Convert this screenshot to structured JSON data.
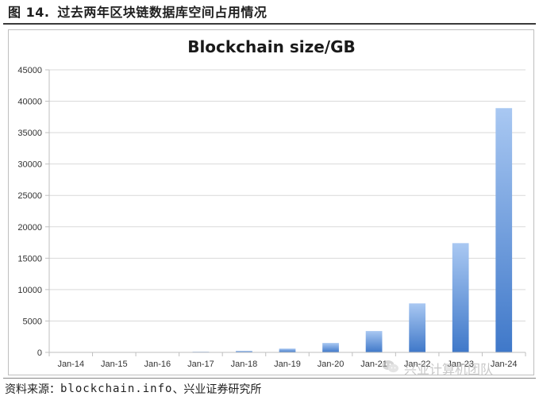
{
  "figure": {
    "label": "图 14.",
    "title": "过去两年区块链数据库空间占用情况"
  },
  "source": {
    "prefix": "资料来源：",
    "site": "blockchain.info",
    "suffix": "、兴业证券研究所"
  },
  "watermark": {
    "text": "兴业计算机团队",
    "icon": "wechat-icon"
  },
  "colors": {
    "bar_top": "#a9c8f2",
    "bar_bottom": "#3f78c9",
    "axis": "#bfbfbf",
    "grid": "#d9d9d9"
  },
  "chart_data": {
    "type": "bar",
    "title": "Blockchain size/GB",
    "xlabel": "",
    "ylabel": "",
    "categories": [
      "Jan-14",
      "Jan-15",
      "Jan-16",
      "Jan-17",
      "Jan-18",
      "Jan-19",
      "Jan-20",
      "Jan-21",
      "Jan-22",
      "Jan-23",
      "Jan-24"
    ],
    "values": [
      15,
      35,
      60,
      110,
      240,
      600,
      1500,
      3400,
      7800,
      17400,
      38900
    ],
    "ylim": [
      0,
      45000
    ],
    "yticks": [
      0,
      5000,
      10000,
      15000,
      20000,
      25000,
      30000,
      35000,
      40000,
      45000
    ],
    "grid": true,
    "legend": "none"
  }
}
